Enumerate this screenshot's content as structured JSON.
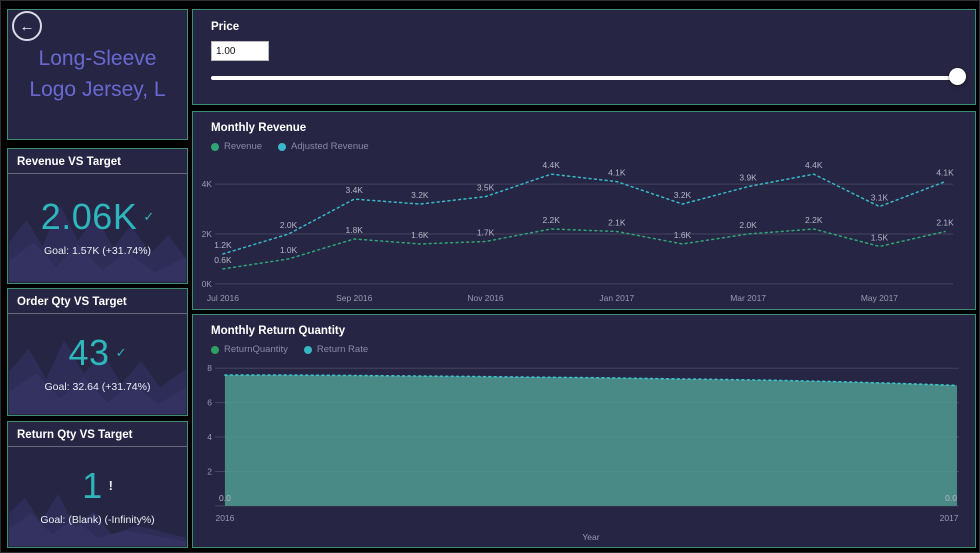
{
  "back_button": {
    "icon": "←"
  },
  "product": {
    "title": "Long-Sleeve Logo Jersey, L"
  },
  "kpis": [
    {
      "title": "Revenue VS Target",
      "value": "2.06K",
      "status": "ok",
      "status_glyph": "✓",
      "goal": "Goal: 1.57K (+31.74%)"
    },
    {
      "title": "Order Qty VS Target",
      "value": "43",
      "status": "ok",
      "status_glyph": "✓",
      "goal": "Goal: 32.64 (+31.74%)"
    },
    {
      "title": "Return Qty VS Target",
      "value": "1",
      "status": "warning",
      "status_glyph": "!",
      "goal": "Goal: (Blank) (-Infinity%)"
    }
  ],
  "price_panel": {
    "title": "Price",
    "value": "1.00",
    "slider_position": "max"
  },
  "chart_data": [
    {
      "type": "line",
      "title": "Monthly Revenue",
      "x": [
        "Jul 2016",
        "Aug 2016",
        "Sep 2016",
        "Oct 2016",
        "Nov 2016",
        "Dec 2016",
        "Jan 2017",
        "Feb 2017",
        "Mar 2017",
        "Apr 2017",
        "May 2017",
        "Jun 2017"
      ],
      "x_ticks": [
        {
          "index": 0,
          "label": "Jul 2016"
        },
        {
          "index": 2,
          "label": "Sep 2016"
        },
        {
          "index": 4,
          "label": "Nov 2016"
        },
        {
          "index": 6,
          "label": "Jan 2017"
        },
        {
          "index": 8,
          "label": "Mar 2017"
        },
        {
          "index": 10,
          "label": "May 2017"
        }
      ],
      "y_ticks": [
        {
          "value": 0,
          "label": "0K"
        },
        {
          "value": 2,
          "label": "2K"
        },
        {
          "value": 4,
          "label": "4K"
        }
      ],
      "ylim": [
        0,
        5
      ],
      "grid": true,
      "legend_position": "top",
      "series": [
        {
          "name": "Revenue",
          "color": "#2fa474",
          "style": "dotted",
          "values": [
            0.6,
            1.0,
            1.8,
            1.6,
            1.7,
            2.2,
            2.1,
            1.6,
            2.0,
            2.2,
            1.5,
            2.1
          ],
          "labels": [
            "0.6K",
            "1.0K",
            "1.8K",
            "1.6K",
            "1.7K",
            "2.2K",
            "2.1K",
            "1.6K",
            "2.0K",
            "2.2K",
            "1.5K",
            "2.1K"
          ]
        },
        {
          "name": "Adjusted Revenue",
          "color": "#38b8c8",
          "style": "dotted",
          "values": [
            1.2,
            2.0,
            3.4,
            3.2,
            3.5,
            4.4,
            4.1,
            3.2,
            3.9,
            4.4,
            3.1,
            4.1
          ],
          "labels": [
            "1.2K",
            "2.0K",
            "3.4K",
            "3.2K",
            "3.5K",
            "4.4K",
            "4.1K",
            "3.2K",
            "3.9K",
            "4.4K",
            "3.1K",
            "4.1K"
          ]
        }
      ]
    },
    {
      "type": "area",
      "title": "Monthly Return Quantity",
      "xlabel": "Year",
      "x_range": [
        2016,
        2017
      ],
      "x_ticks": [
        {
          "pos": 0,
          "label": "2016"
        },
        {
          "pos": 1,
          "label": "2017"
        }
      ],
      "y_ticks": [
        {
          "value": 8,
          "label": "8"
        },
        {
          "value": 6,
          "label": "6"
        },
        {
          "value": 4,
          "label": "4"
        },
        {
          "value": 2,
          "label": "2"
        }
      ],
      "ylim": [
        0,
        8.3
      ],
      "grid": true,
      "legend_position": "top",
      "series": [
        {
          "name": "ReturnQuantity",
          "color": "#2ea160",
          "area_fill": "#4f988f",
          "line_color": "#3cc2c8",
          "style": "dotted-area",
          "values": [
            7.6,
            7.6,
            7.58,
            7.55,
            7.52,
            7.48,
            7.45,
            7.4,
            7.35,
            7.3,
            7.22,
            7.12,
            7.0
          ]
        },
        {
          "name": "Return Rate",
          "color": "#35b6c2",
          "values": [
            0.0,
            0.0
          ],
          "end_labels": [
            "0.0",
            "0.0"
          ]
        }
      ]
    }
  ],
  "theme": {
    "background": "#010103",
    "card_bg": "#262543",
    "card_border": "#3E8F72",
    "kpi_value_color": "#2FB6BD",
    "product_title_color": "#6A69D1",
    "gridline": "#45445E"
  }
}
